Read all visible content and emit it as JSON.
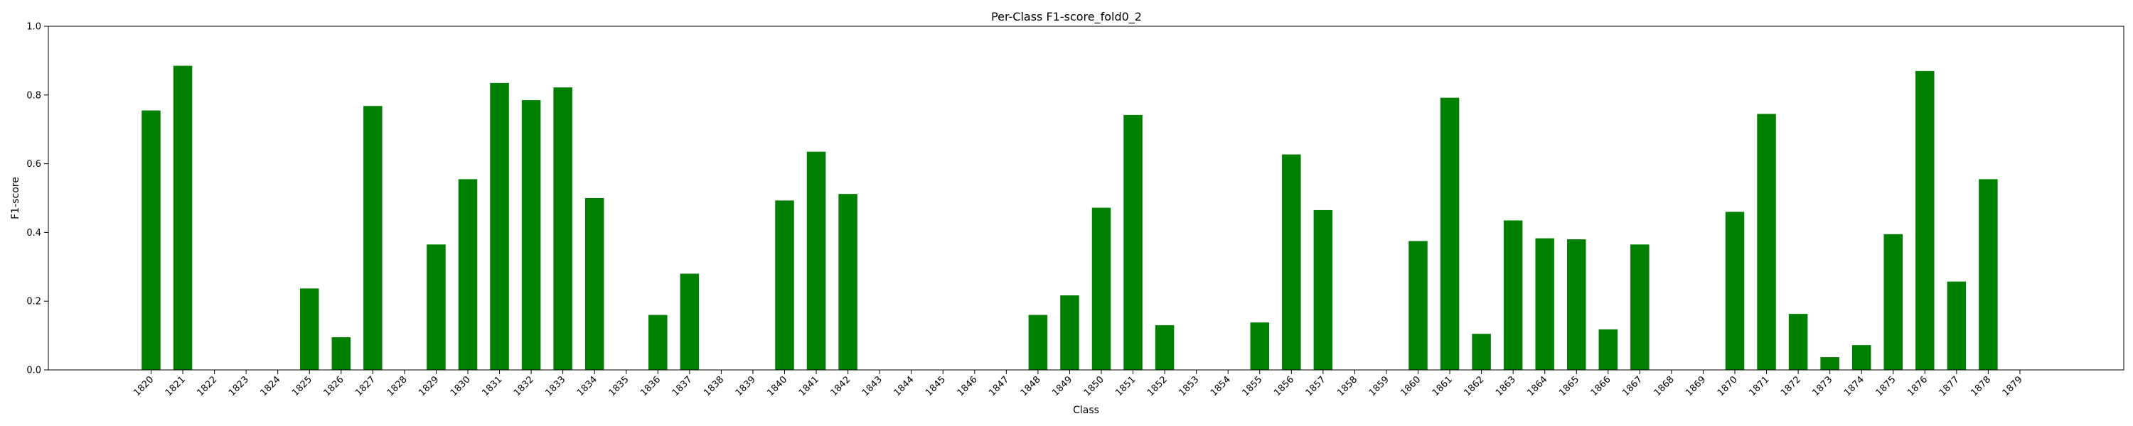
{
  "chart_data": {
    "type": "bar",
    "title": "Per-Class F1-score_fold0_2",
    "xlabel": "Class",
    "ylabel": "F1-score",
    "ylim": [
      0,
      1.0
    ],
    "yticks": [
      "0.0",
      "0.2",
      "0.4",
      "0.6",
      "0.8",
      "1.0"
    ],
    "grid": false,
    "bar_color": "#008000",
    "categories": [
      "1820",
      "1821",
      "1822",
      "1823",
      "1824",
      "1825",
      "1826",
      "1827",
      "1828",
      "1829",
      "1830",
      "1831",
      "1832",
      "1833",
      "1834",
      "1835",
      "1836",
      "1837",
      "1838",
      "1839",
      "1840",
      "1841",
      "1842",
      "1843",
      "1844",
      "1845",
      "1846",
      "1847",
      "1848",
      "1849",
      "1850",
      "1851",
      "1852",
      "1853",
      "1854",
      "1855",
      "1856",
      "1857",
      "1858",
      "1859",
      "1860",
      "1861",
      "1862",
      "1863",
      "1864",
      "1865",
      "1866",
      "1867",
      "1868",
      "1869",
      "1870",
      "1871",
      "1872",
      "1873",
      "1874",
      "1875",
      "1876",
      "1877",
      "1878",
      "1879"
    ],
    "values": [
      0.755,
      0.885,
      0,
      0,
      0,
      0.237,
      0.095,
      0.768,
      0,
      0.365,
      0.555,
      0.835,
      0.785,
      0.822,
      0.5,
      0,
      0.16,
      0.28,
      0,
      0,
      0.493,
      0.635,
      0.512,
      0,
      0,
      0,
      0,
      0,
      0.16,
      0.217,
      0.472,
      0.742,
      0.13,
      0,
      0,
      0.138,
      0.627,
      0.465,
      0,
      0,
      0.375,
      0.792,
      0.105,
      0.435,
      0.383,
      0.38,
      0.118,
      0.365,
      0,
      0,
      0.46,
      0.745,
      0.163,
      0.037,
      0.072,
      0.395,
      0.87,
      0.257,
      0.555,
      0
    ]
  }
}
